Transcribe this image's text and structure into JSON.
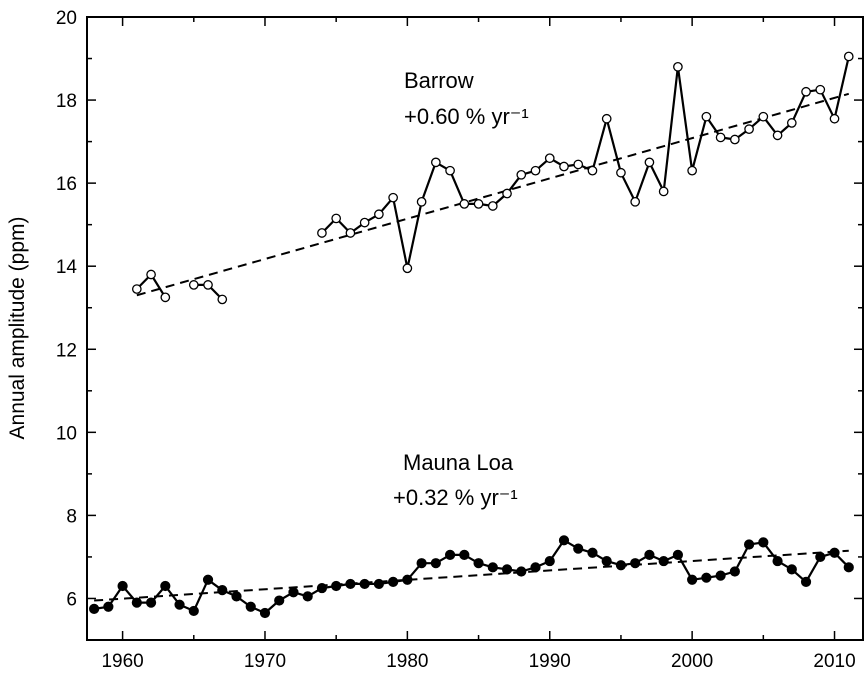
{
  "chart_data": {
    "type": "line",
    "title": "",
    "xlabel": "",
    "ylabel": "Annual amplitude (ppm)",
    "xlim": [
      1957.5,
      2012
    ],
    "ylim": [
      5,
      20
    ],
    "x_ticks": [
      1960,
      1970,
      1980,
      1990,
      2000,
      2010
    ],
    "y_ticks": [
      6,
      8,
      10,
      12,
      14,
      16,
      18,
      20
    ],
    "grid": false,
    "series": [
      {
        "name": "Barrow",
        "marker": "open-circle",
        "segments": [
          [
            [
              1961,
              13.45
            ],
            [
              1962,
              13.8
            ],
            [
              1963,
              13.25
            ]
          ],
          [
            [
              1965,
              13.55
            ],
            [
              1966,
              13.55
            ],
            [
              1967,
              13.2
            ]
          ],
          [
            [
              1974,
              14.8
            ],
            [
              1975,
              15.15
            ],
            [
              1976,
              14.8
            ],
            [
              1977,
              15.05
            ],
            [
              1978,
              15.25
            ],
            [
              1979,
              15.65
            ],
            [
              1980,
              13.95
            ],
            [
              1981,
              15.55
            ],
            [
              1982,
              16.5
            ],
            [
              1983,
              16.3
            ],
            [
              1984,
              15.5
            ],
            [
              1985,
              15.5
            ],
            [
              1986,
              15.45
            ],
            [
              1987,
              15.75
            ],
            [
              1988,
              16.2
            ],
            [
              1989,
              16.3
            ],
            [
              1990,
              16.6
            ],
            [
              1991,
              16.4
            ],
            [
              1992,
              16.45
            ],
            [
              1993,
              16.3
            ],
            [
              1994,
              17.55
            ],
            [
              1995,
              16.25
            ],
            [
              1996,
              15.55
            ],
            [
              1997,
              16.5
            ],
            [
              1998,
              15.8
            ],
            [
              1999,
              18.8
            ],
            [
              2000,
              16.3
            ],
            [
              2001,
              17.6
            ],
            [
              2002,
              17.1
            ],
            [
              2003,
              17.05
            ],
            [
              2004,
              17.3
            ],
            [
              2005,
              17.6
            ],
            [
              2006,
              17.15
            ],
            [
              2007,
              17.45
            ],
            [
              2008,
              18.2
            ],
            [
              2009,
              18.25
            ],
            [
              2010,
              17.55
            ],
            [
              2011,
              19.05
            ]
          ]
        ],
        "trend": [
          [
            1961,
            13.3
          ],
          [
            2011,
            18.15
          ]
        ]
      },
      {
        "name": "Mauna Loa",
        "marker": "filled-circle",
        "segments": [
          [
            [
              1958,
              5.75
            ],
            [
              1959,
              5.8
            ],
            [
              1960,
              6.3
            ],
            [
              1961,
              5.9
            ],
            [
              1962,
              5.9
            ],
            [
              1963,
              6.3
            ],
            [
              1964,
              5.85
            ],
            [
              1965,
              5.7
            ],
            [
              1966,
              6.45
            ],
            [
              1967,
              6.2
            ],
            [
              1968,
              6.05
            ],
            [
              1969,
              5.8
            ],
            [
              1970,
              5.65
            ],
            [
              1971,
              5.95
            ],
            [
              1972,
              6.15
            ],
            [
              1973,
              6.05
            ],
            [
              1974,
              6.25
            ],
            [
              1975,
              6.3
            ],
            [
              1976,
              6.35
            ],
            [
              1977,
              6.35
            ],
            [
              1978,
              6.35
            ],
            [
              1979,
              6.4
            ],
            [
              1980,
              6.45
            ],
            [
              1981,
              6.85
            ],
            [
              1982,
              6.85
            ],
            [
              1983,
              7.05
            ],
            [
              1984,
              7.05
            ],
            [
              1985,
              6.85
            ],
            [
              1986,
              6.75
            ],
            [
              1987,
              6.7
            ],
            [
              1988,
              6.65
            ],
            [
              1989,
              6.75
            ],
            [
              1990,
              6.9
            ],
            [
              1991,
              7.4
            ],
            [
              1992,
              7.2
            ],
            [
              1993,
              7.1
            ],
            [
              1994,
              6.9
            ],
            [
              1995,
              6.8
            ],
            [
              1996,
              6.85
            ],
            [
              1997,
              7.05
            ],
            [
              1998,
              6.9
            ],
            [
              1999,
              7.05
            ],
            [
              2000,
              6.45
            ],
            [
              2001,
              6.5
            ],
            [
              2002,
              6.55
            ],
            [
              2003,
              6.65
            ],
            [
              2004,
              7.3
            ],
            [
              2005,
              7.35
            ],
            [
              2006,
              6.9
            ],
            [
              2007,
              6.7
            ],
            [
              2008,
              6.4
            ],
            [
              2009,
              7.0
            ],
            [
              2010,
              7.1
            ],
            [
              2011,
              6.75
            ]
          ]
        ],
        "trend": [
          [
            1958,
            5.95
          ],
          [
            2011,
            7.15
          ]
        ]
      }
    ],
    "annotations": [
      {
        "id": "barrow-name",
        "text": "Barrow"
      },
      {
        "id": "barrow-rate",
        "text": "+0.60 % yr⁻¹"
      },
      {
        "id": "mlo-name",
        "text": "Mauna Loa"
      },
      {
        "id": "mlo-rate",
        "text": "+0.32 % yr⁻¹"
      }
    ]
  }
}
